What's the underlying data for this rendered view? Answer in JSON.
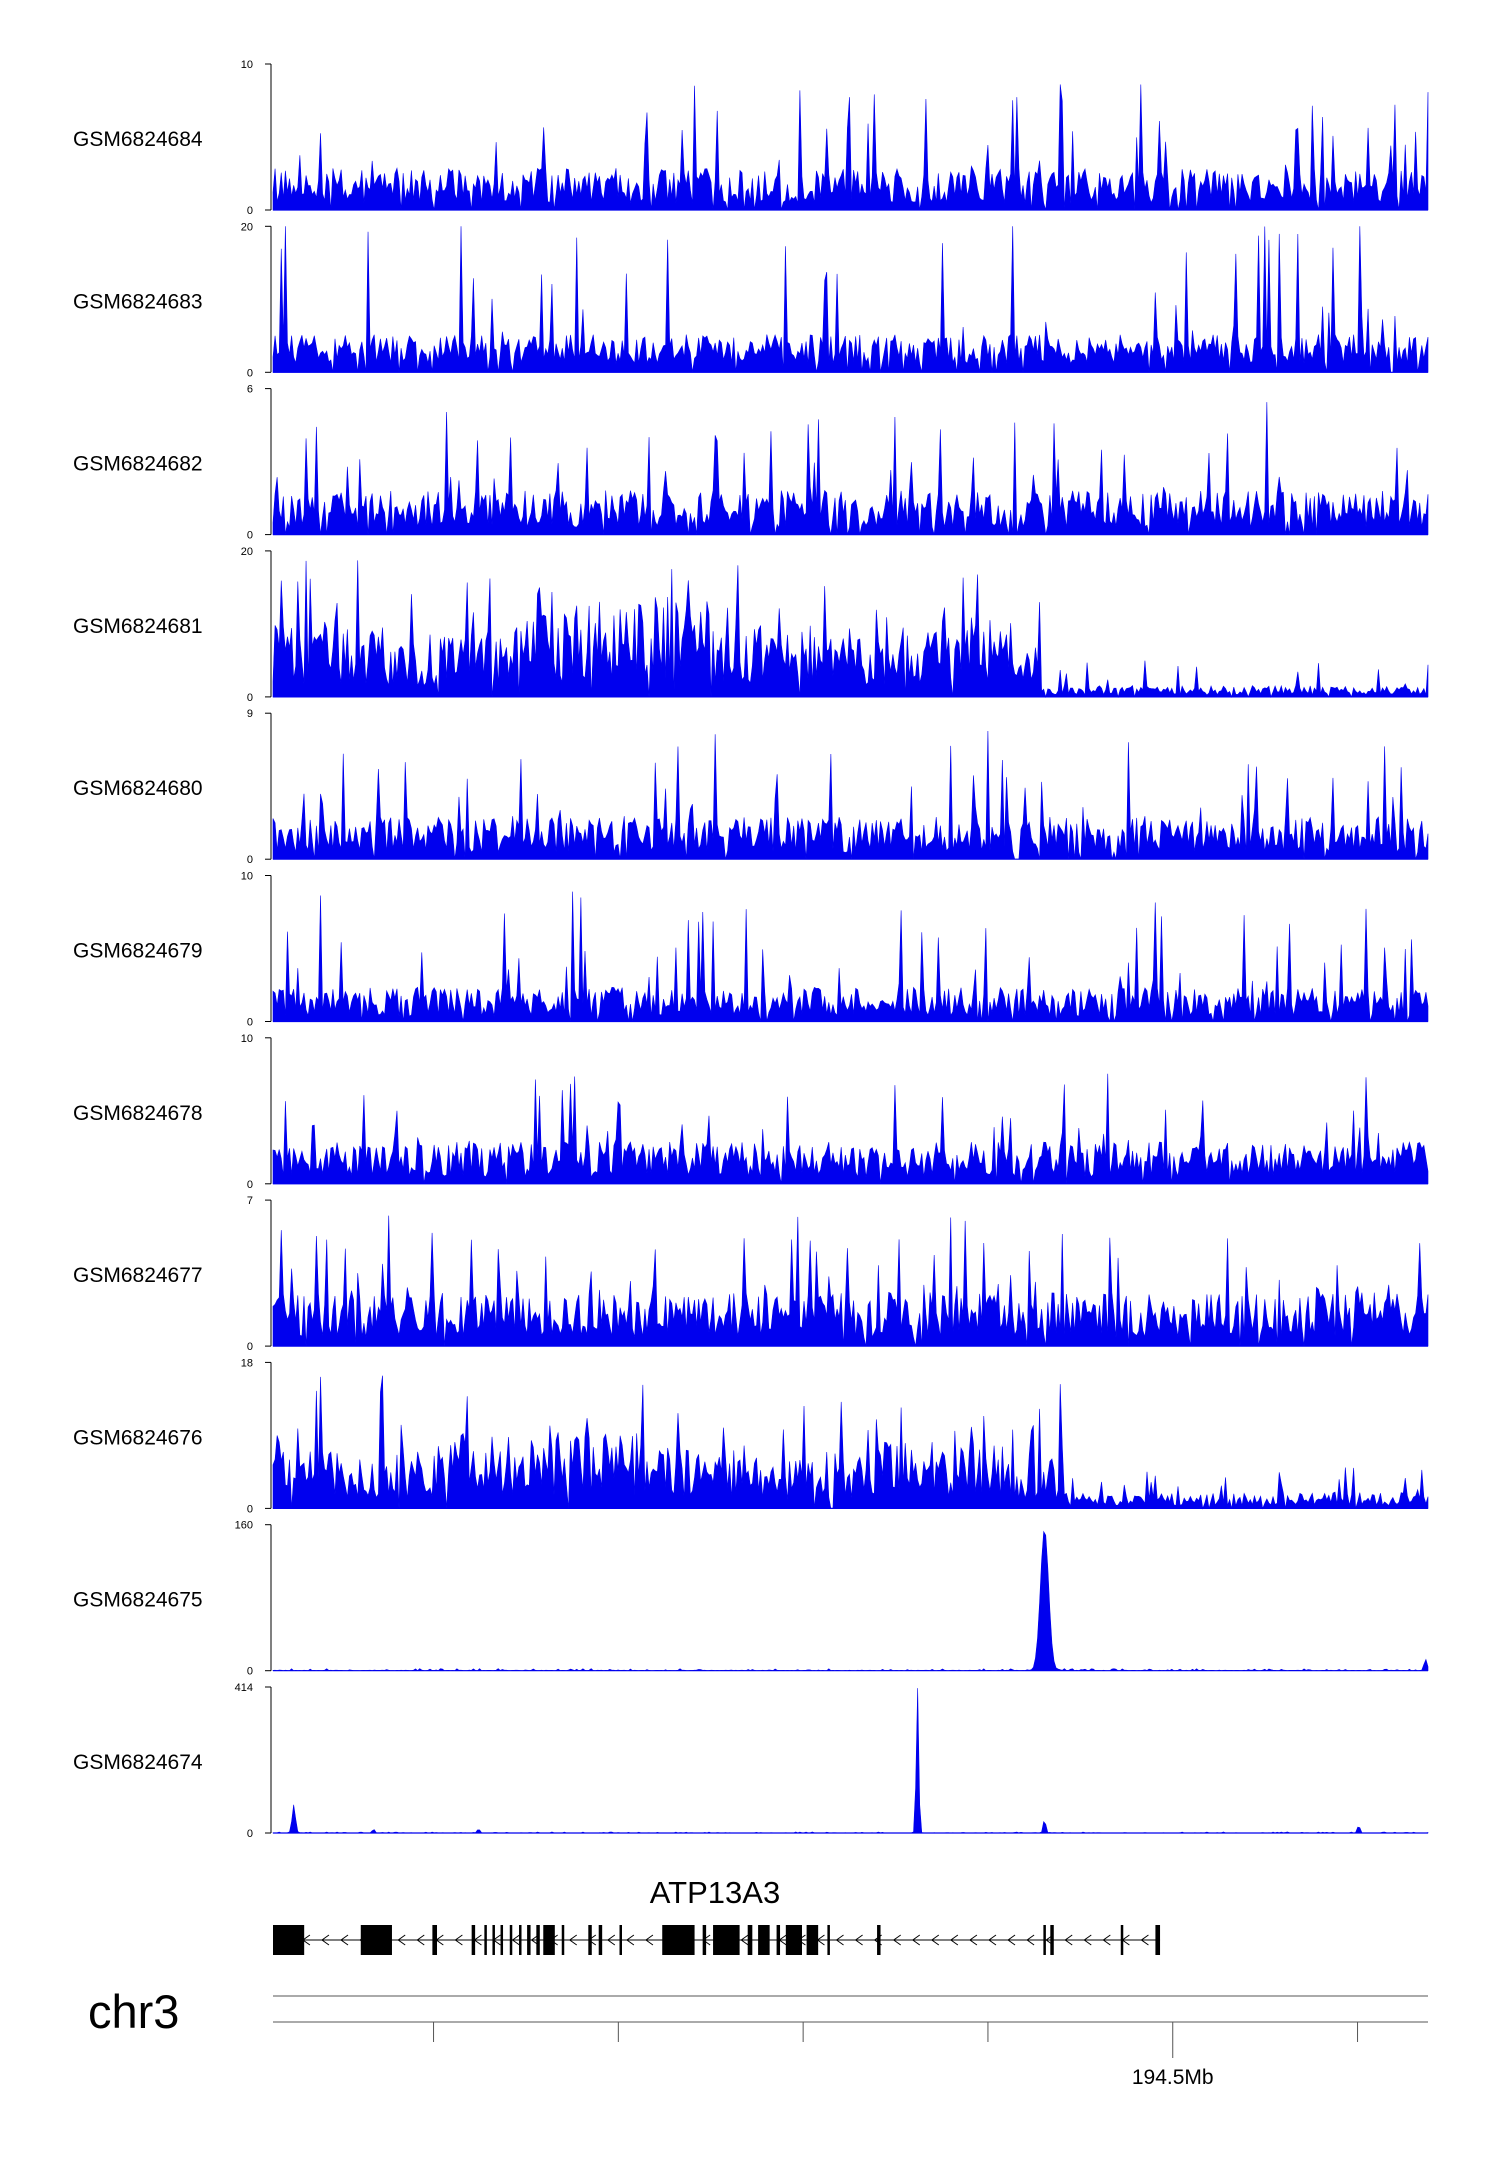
{
  "chart_data": {
    "type": "area",
    "style": {
      "signal_color": "#0000ee",
      "axis_color": "#000000",
      "gene_color": "#000000",
      "ruler_color": "#555555"
    },
    "tracks": [
      {
        "name": "GSM6824684",
        "ymin": 0,
        "ymax": 10,
        "ymin_label": "0",
        "ymax_label": "10",
        "profile": "noise",
        "level": 2.2,
        "spike": 10,
        "seed": 684
      },
      {
        "name": "GSM6824683",
        "ymin": 0,
        "ymax": 20,
        "ymin_label": "0",
        "ymax_label": "20",
        "profile": "sparse",
        "level": 4,
        "spike": 20,
        "seed": 683
      },
      {
        "name": "GSM6824682",
        "ymin": 0,
        "ymax": 6,
        "ymin_label": "0",
        "ymax_label": "6",
        "profile": "noise",
        "level": 1.4,
        "spike": 6,
        "seed": 682
      },
      {
        "name": "GSM6824681",
        "ymin": 0,
        "ymax": 20,
        "ymin_label": "0",
        "ymax_label": "20",
        "profile": "domain",
        "level": 8,
        "level_after": 1.2,
        "break_at": 0.665,
        "spike": 20,
        "seed": 681
      },
      {
        "name": "GSM6824680",
        "ymin": 0,
        "ymax": 9,
        "ymin_label": "0",
        "ymax_label": "9",
        "profile": "noise",
        "level": 2.0,
        "spike": 9,
        "seed": 680
      },
      {
        "name": "GSM6824679",
        "ymin": 0,
        "ymax": 10,
        "ymin_label": "0",
        "ymax_label": "10",
        "profile": "noise",
        "level": 1.8,
        "spike": 10,
        "seed": 679
      },
      {
        "name": "GSM6824678",
        "ymin": 0,
        "ymax": 10,
        "ymin_label": "0",
        "ymax_label": "10",
        "profile": "noise",
        "level": 2.2,
        "spike": 9,
        "seed": 678
      },
      {
        "name": "GSM6824677",
        "ymin": 0,
        "ymax": 7,
        "ymin_label": "0",
        "ymax_label": "7",
        "profile": "noise",
        "level": 2.0,
        "spike": 7,
        "seed": 677
      },
      {
        "name": "GSM6824676",
        "ymin": 0,
        "ymax": 18,
        "ymin_label": "0",
        "ymax_label": "18",
        "profile": "domain",
        "level": 6,
        "level_after": 1.5,
        "break_at": 0.685,
        "spike": 18,
        "seed": 676
      },
      {
        "name": "GSM6824675",
        "ymin": 0,
        "ymax": 160,
        "ymin_label": "0",
        "ymax_label": "160",
        "profile": "peaks",
        "base": 1.5,
        "peaks": [
          {
            "x": 0.668,
            "height": 155,
            "width": 0.005
          },
          {
            "x": 0.998,
            "height": 12,
            "width": 0.002
          }
        ],
        "seed": 675
      },
      {
        "name": "GSM6824674",
        "ymin": 0,
        "ymax": 414,
        "ymin_label": "0",
        "ymax_label": "414",
        "profile": "peaks",
        "base": 2,
        "peaks": [
          {
            "x": 0.018,
            "height": 80,
            "width": 0.002
          },
          {
            "x": 0.558,
            "height": 414,
            "width": 0.0015
          },
          {
            "x": 0.668,
            "height": 40,
            "width": 0.0015
          },
          {
            "x": 0.94,
            "height": 22,
            "width": 0.0015
          },
          {
            "x": 0.178,
            "height": 12,
            "width": 0.0015
          },
          {
            "x": 0.087,
            "height": 10,
            "width": 0.0015
          }
        ],
        "seed": 674
      }
    ],
    "gene": {
      "name": "ATP13A3",
      "strand": "-",
      "start": 0.0,
      "end": 0.768,
      "exons": [
        {
          "start": 0.0,
          "end": 0.027,
          "thick": true
        },
        {
          "start": 0.076,
          "end": 0.103,
          "thick": true
        },
        {
          "start": 0.138,
          "end": 0.142,
          "thick": false
        },
        {
          "start": 0.172,
          "end": 0.175,
          "thick": false
        },
        {
          "start": 0.183,
          "end": 0.185,
          "thick": false
        },
        {
          "start": 0.19,
          "end": 0.192,
          "thick": false
        },
        {
          "start": 0.197,
          "end": 0.199,
          "thick": false
        },
        {
          "start": 0.205,
          "end": 0.207,
          "thick": false
        },
        {
          "start": 0.213,
          "end": 0.215,
          "thick": false
        },
        {
          "start": 0.22,
          "end": 0.223,
          "thick": false
        },
        {
          "start": 0.228,
          "end": 0.231,
          "thick": false
        },
        {
          "start": 0.234,
          "end": 0.244,
          "thick": true
        },
        {
          "start": 0.25,
          "end": 0.252,
          "thick": false
        },
        {
          "start": 0.273,
          "end": 0.276,
          "thick": false
        },
        {
          "start": 0.282,
          "end": 0.285,
          "thick": false
        },
        {
          "start": 0.3,
          "end": 0.302,
          "thick": false
        },
        {
          "start": 0.337,
          "end": 0.365,
          "thick": true
        },
        {
          "start": 0.372,
          "end": 0.375,
          "thick": false
        },
        {
          "start": 0.381,
          "end": 0.404,
          "thick": true
        },
        {
          "start": 0.411,
          "end": 0.415,
          "thick": false
        },
        {
          "start": 0.42,
          "end": 0.43,
          "thick": true
        },
        {
          "start": 0.436,
          "end": 0.439,
          "thick": false
        },
        {
          "start": 0.444,
          "end": 0.458,
          "thick": true
        },
        {
          "start": 0.462,
          "end": 0.472,
          "thick": true
        },
        {
          "start": 0.48,
          "end": 0.482,
          "thick": false
        },
        {
          "start": 0.523,
          "end": 0.526,
          "thick": false
        },
        {
          "start": 0.667,
          "end": 0.669,
          "thick": false
        },
        {
          "start": 0.673,
          "end": 0.676,
          "thick": false
        },
        {
          "start": 0.734,
          "end": 0.736,
          "thick": false
        },
        {
          "start": 0.764,
          "end": 0.768,
          "thick": false
        }
      ]
    },
    "chromosome": "chr3",
    "ruler": {
      "ticks": [
        0.139,
        0.299,
        0.459,
        0.619,
        0.779,
        0.939
      ],
      "labeled_tick": {
        "at": 0.779,
        "label": "194.5Mb"
      }
    }
  }
}
